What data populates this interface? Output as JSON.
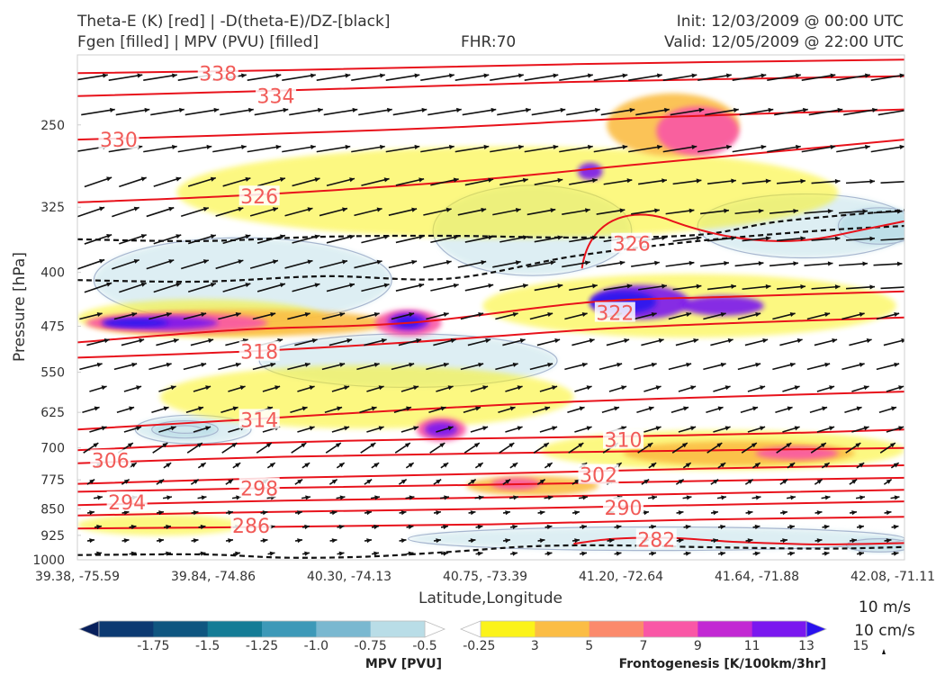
{
  "header": {
    "title_line1": "Theta-E (K) [red] | -D(theta-E)/DZ-[black]",
    "title_line2": "Fgen [filled] | MPV (PVU) [filled]",
    "fhr": "FHR:70",
    "init": "Init: 12/03/2009 @ 00:00 UTC",
    "valid": "Valid: 12/05/2009 @ 22:00 UTC"
  },
  "chart_data": {
    "type": "cross-section",
    "xlabel": "Latitude,Longitude",
    "ylabel": "Pressure [hPa]",
    "y_scale": "log",
    "ylim": [
      1000,
      200
    ],
    "y_ticks": [
      "250",
      "325",
      "400",
      "475",
      "550",
      "625",
      "700",
      "775",
      "850",
      "925",
      "1000"
    ],
    "x_ticks": [
      "39.38, -75.59",
      "39.84, -74.86",
      "40.30, -74.13",
      "40.75, -73.39",
      "41.20, -72.64",
      "41.64, -71.88",
      "42.08, -71.11"
    ],
    "theta_e_contours": [
      {
        "label": "338",
        "points": [
          [
            0.0,
            212
          ],
          [
            0.25,
            210
          ],
          [
            0.6,
            206
          ],
          [
            1.0,
            203
          ]
        ]
      },
      {
        "label": "334",
        "points": [
          [
            0.0,
            228
          ],
          [
            0.25,
            224
          ],
          [
            0.6,
            218
          ],
          [
            1.0,
            214
          ]
        ]
      },
      {
        "label": "330",
        "points": [
          [
            0.0,
            262
          ],
          [
            0.2,
            258
          ],
          [
            0.45,
            252
          ],
          [
            0.7,
            244
          ],
          [
            1.0,
            238
          ]
        ]
      },
      {
        "label": "326",
        "points": [
          [
            0.0,
            320
          ],
          [
            0.2,
            313
          ],
          [
            0.45,
            300
          ],
          [
            0.7,
            282
          ],
          [
            1.0,
            262
          ]
        ]
      },
      {
        "label": "322",
        "points": [
          [
            0.0,
            500
          ],
          [
            0.2,
            480
          ],
          [
            0.4,
            470
          ],
          [
            0.62,
            440
          ],
          [
            0.8,
            432
          ],
          [
            1.0,
            425
          ]
        ]
      },
      {
        "label": "318",
        "points": [
          [
            0.0,
            525
          ],
          [
            0.2,
            515
          ],
          [
            0.4,
            500
          ],
          [
            0.62,
            480
          ],
          [
            0.8,
            470
          ],
          [
            1.0,
            462
          ]
        ]
      },
      {
        "label": "314",
        "points": [
          [
            0.0,
            660
          ],
          [
            0.2,
            640
          ],
          [
            0.4,
            620
          ],
          [
            0.6,
            604
          ],
          [
            0.8,
            594
          ],
          [
            1.0,
            585
          ]
        ]
      },
      {
        "label": "310",
        "points": [
          [
            0.0,
            705
          ],
          [
            0.2,
            690
          ],
          [
            0.45,
            680
          ],
          [
            0.65,
            675
          ],
          [
            0.85,
            668
          ],
          [
            1.0,
            660
          ]
        ]
      },
      {
        "label": "306",
        "points": [
          [
            0.0,
            735
          ],
          [
            0.25,
            720
          ],
          [
            0.5,
            712
          ],
          [
            0.75,
            706
          ],
          [
            1.0,
            700
          ]
        ]
      },
      {
        "label": "302",
        "points": [
          [
            0.0,
            785
          ],
          [
            0.25,
            770
          ],
          [
            0.5,
            760
          ],
          [
            0.75,
            748
          ],
          [
            1.0,
            740
          ]
        ]
      },
      {
        "label": "298",
        "points": [
          [
            0.0,
            805
          ],
          [
            0.25,
            795
          ],
          [
            0.5,
            787
          ],
          [
            0.75,
            778
          ],
          [
            1.0,
            770
          ]
        ]
      },
      {
        "label": "294",
        "points": [
          [
            0.0,
            840
          ],
          [
            0.25,
            828
          ],
          [
            0.5,
            820
          ],
          [
            0.75,
            810
          ],
          [
            1.0,
            800
          ]
        ]
      },
      {
        "label": "290",
        "points": [
          [
            0.0,
            868
          ],
          [
            0.25,
            858
          ],
          [
            0.5,
            850
          ],
          [
            0.75,
            840
          ],
          [
            1.0,
            830
          ]
        ]
      },
      {
        "label": "286",
        "points": [
          [
            0.0,
            905
          ],
          [
            0.25,
            900
          ],
          [
            0.5,
            893
          ],
          [
            0.75,
            880
          ],
          [
            1.0,
            872
          ]
        ]
      },
      {
        "label": "282",
        "points": [
          [
            0.6,
            950
          ],
          [
            0.65,
            935
          ],
          [
            0.72,
            933
          ],
          [
            0.8,
            945
          ],
          [
            0.9,
            952
          ],
          [
            1.0,
            948
          ]
        ]
      }
    ],
    "theta_e_labels": [
      {
        "text": "338",
        "x": 0.17,
        "p": 212
      },
      {
        "text": "334",
        "x": 0.24,
        "p": 228
      },
      {
        "text": "330",
        "x": 0.05,
        "p": 262
      },
      {
        "text": "326",
        "x": 0.22,
        "p": 314
      },
      {
        "text": "326",
        "x": 0.67,
        "p": 365
      },
      {
        "text": "322",
        "x": 0.65,
        "p": 455
      },
      {
        "text": "318",
        "x": 0.22,
        "p": 515
      },
      {
        "text": "314",
        "x": 0.22,
        "p": 640
      },
      {
        "text": "310",
        "x": 0.66,
        "p": 682
      },
      {
        "text": "306",
        "x": 0.04,
        "p": 728
      },
      {
        "text": "302",
        "x": 0.63,
        "p": 763
      },
      {
        "text": "298",
        "x": 0.22,
        "p": 796
      },
      {
        "text": "294",
        "x": 0.06,
        "p": 832
      },
      {
        "text": "290",
        "x": 0.66,
        "p": 847
      },
      {
        "text": "286",
        "x": 0.21,
        "p": 897
      },
      {
        "text": "282",
        "x": 0.7,
        "p": 937
      }
    ],
    "stability_contours": [
      {
        "points": [
          [
            0.0,
            360
          ],
          [
            0.15,
            362
          ],
          [
            0.3,
            357
          ],
          [
            0.45,
            356
          ],
          [
            0.6,
            358
          ],
          [
            0.75,
            355
          ],
          [
            0.85,
            340
          ],
          [
            1.0,
            328
          ]
        ]
      },
      {
        "points": [
          [
            0.0,
            410
          ],
          [
            0.15,
            412
          ],
          [
            0.3,
            405
          ],
          [
            0.45,
            408
          ],
          [
            0.6,
            380
          ],
          [
            0.75,
            362
          ],
          [
            0.9,
            350
          ],
          [
            1.0,
            345
          ]
        ]
      },
      {
        "points": [
          [
            0.0,
            985
          ],
          [
            0.15,
            983
          ],
          [
            0.25,
            993
          ],
          [
            0.35,
            990
          ],
          [
            0.45,
            975
          ],
          [
            0.55,
            958
          ],
          [
            0.65,
            955
          ],
          [
            0.75,
            960
          ],
          [
            0.9,
            965
          ],
          [
            1.0,
            960
          ]
        ]
      }
    ],
    "fgen_blobs": [
      {
        "x": 0.35,
        "p": 595,
        "rx": 0.25,
        "rp": 60,
        "v": 3
      },
      {
        "x": 0.78,
        "p": 705,
        "rx": 0.22,
        "rp": 45,
        "v": 3
      },
      {
        "x": 0.15,
        "p": 463,
        "rx": 0.15,
        "rp": 28,
        "v": 3
      },
      {
        "x": 0.52,
        "p": 310,
        "rx": 0.4,
        "rp": 45,
        "v": 3
      },
      {
        "x": 0.74,
        "p": 445,
        "rx": 0.25,
        "rp": 45,
        "v": 3
      },
      {
        "x": 0.1,
        "p": 895,
        "rx": 0.1,
        "rp": 30,
        "v": 3
      },
      {
        "x": 0.2,
        "p": 470,
        "rx": 0.18,
        "rp": 20,
        "v": 5
      },
      {
        "x": 0.8,
        "p": 712,
        "rx": 0.14,
        "rp": 28,
        "v": 5
      },
      {
        "x": 0.55,
        "p": 790,
        "rx": 0.08,
        "rp": 25,
        "v": 5
      },
      {
        "x": 0.72,
        "p": 250,
        "rx": 0.08,
        "rp": 25,
        "v": 5
      },
      {
        "x": 0.12,
        "p": 470,
        "rx": 0.11,
        "rp": 15,
        "v": 9
      },
      {
        "x": 0.4,
        "p": 470,
        "rx": 0.04,
        "rp": 20,
        "v": 9
      },
      {
        "x": 0.44,
        "p": 660,
        "rx": 0.03,
        "rp": 25,
        "v": 9
      },
      {
        "x": 0.53,
        "p": 785,
        "rx": 0.03,
        "rp": 15,
        "v": 9
      },
      {
        "x": 0.75,
        "p": 255,
        "rx": 0.05,
        "rp": 20,
        "v": 9
      },
      {
        "x": 0.87,
        "p": 712,
        "rx": 0.05,
        "rp": 15,
        "v": 9
      },
      {
        "x": 0.1,
        "p": 470,
        "rx": 0.07,
        "rp": 10,
        "v": 13
      },
      {
        "x": 0.4,
        "p": 468,
        "rx": 0.025,
        "rp": 14,
        "v": 13
      },
      {
        "x": 0.44,
        "p": 660,
        "rx": 0.02,
        "rp": 16,
        "v": 13
      },
      {
        "x": 0.68,
        "p": 440,
        "rx": 0.06,
        "rp": 24,
        "v": 13
      },
      {
        "x": 0.62,
        "p": 290,
        "rx": 0.015,
        "rp": 8,
        "v": 13
      },
      {
        "x": 0.78,
        "p": 445,
        "rx": 0.05,
        "rp": 14,
        "v": 13
      },
      {
        "x": 0.66,
        "p": 440,
        "rx": 0.04,
        "rp": 16,
        "v": 15
      },
      {
        "x": 0.07,
        "p": 470,
        "rx": 0.04,
        "rp": 6,
        "v": 15
      },
      {
        "x": 0.4,
        "p": 468,
        "rx": 0.015,
        "rp": 8,
        "v": 15
      }
    ],
    "mpv_blobs": [
      {
        "x": 0.2,
        "p": 410,
        "rx": 0.18,
        "rp": 55,
        "v": -0.25
      },
      {
        "x": 0.55,
        "p": 350,
        "rx": 0.12,
        "rp": 50,
        "v": -0.25
      },
      {
        "x": 0.88,
        "p": 345,
        "rx": 0.13,
        "rp": 35,
        "v": -0.25
      },
      {
        "x": 0.4,
        "p": 530,
        "rx": 0.18,
        "rp": 45,
        "v": -0.25
      },
      {
        "x": 0.14,
        "p": 660,
        "rx": 0.07,
        "rp": 30,
        "v": -0.25
      },
      {
        "x": 0.7,
        "p": 935,
        "rx": 0.3,
        "rp": 35,
        "v": -0.25
      },
      {
        "x": 0.13,
        "p": 660,
        "rx": 0.04,
        "rp": 18,
        "v": -0.5
      },
      {
        "x": 0.97,
        "p": 345,
        "rx": 0.05,
        "rp": 20,
        "v": -0.5
      },
      {
        "x": 0.97,
        "p": 955,
        "rx": 0.04,
        "rp": 20,
        "v": -0.5
      },
      {
        "x": 0.13,
        "p": 660,
        "rx": 0.02,
        "rp": 8,
        "v": -1.0
      }
    ],
    "wind": {
      "scale_label": "10 m/s",
      "scale_label2": "10 cm/s"
    },
    "colorbar_mpv": {
      "label": "MPV [PVU]",
      "ticks": [
        "-1.75",
        "-1.5",
        "-1.25",
        "-1.0",
        "-0.75",
        "-0.5",
        "-0.25"
      ],
      "colors": [
        "#08205c",
        "#0c3a72",
        "#0f5680",
        "#147c96",
        "#3d99b8",
        "#7ab8d0",
        "#b9dde7",
        "#ffffff"
      ]
    },
    "colorbar_fgen": {
      "label": "Frontogenesis [K/100km/3hr]",
      "ticks": [
        "3",
        "5",
        "7",
        "9",
        "11",
        "13",
        "15"
      ],
      "colors": [
        "#ffffff",
        "#fbf31a",
        "#fbbd45",
        "#fb8a6c",
        "#f957a6",
        "#c228d3",
        "#7a18ef",
        "#2a12ee"
      ]
    }
  }
}
